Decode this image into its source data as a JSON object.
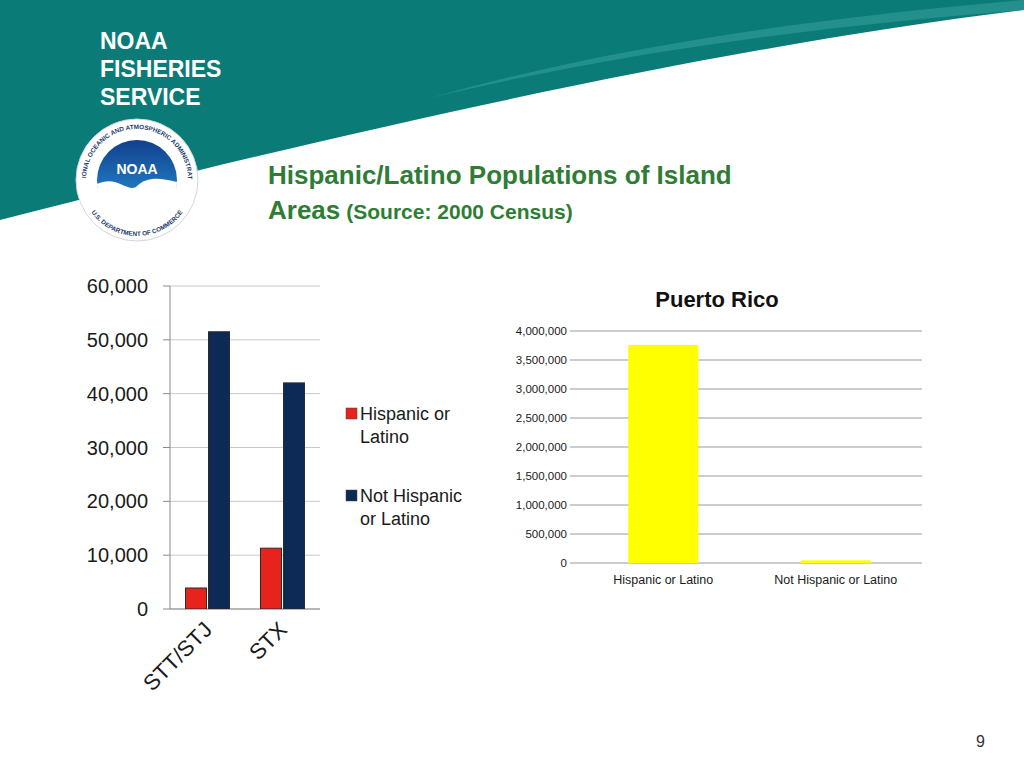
{
  "page": {
    "brand": [
      "NOAA",
      "FISHERIES",
      "SERVICE"
    ],
    "logo": {
      "center": "NOAA",
      "ring_top": "NATIONAL OCEANIC AND ATMOSPHERIC ADMINISTRATION",
      "ring_bottom": "U.S. DEPARTMENT OF COMMERCE"
    },
    "title_lines": [
      "Hispanic/Latino Populations of Island",
      "Areas"
    ],
    "source": "(Source:  2000 Census)",
    "page_number": 9
  },
  "chart_data": [
    {
      "type": "bar",
      "categories": [
        "STT/STJ",
        "STX"
      ],
      "series": [
        {
          "name": "Hispanic or Latino",
          "color": "#e8221c",
          "values": [
            3900,
            11300
          ]
        },
        {
          "name": "Not Hispanic or Latino",
          "color": "#0c2a55",
          "values": [
            51500,
            42000
          ]
        }
      ],
      "ylim": [
        0,
        60000
      ],
      "yticks": [
        0,
        {
          "value": 10000,
          "label": "10,000"
        },
        {
          "value": 20000,
          "label": "20,000"
        },
        {
          "value": 30000,
          "label": "30,000"
        },
        {
          "value": 40000,
          "label": "40,000"
        },
        {
          "value": 50000,
          "label": "50,000"
        },
        {
          "value": 60000,
          "label": "60,000"
        }
      ],
      "grid": true,
      "legend": "right"
    },
    {
      "type": "bar",
      "title": "Puerto Rico",
      "categories": [
        "Hispanic or Latino",
        "Not Hispanic or Latino"
      ],
      "values": [
        3760000,
        46000
      ],
      "color": "#ffff00",
      "ylim": [
        0,
        4000000
      ],
      "yticks": [
        0,
        {
          "value": 500000,
          "label": "500,000"
        },
        {
          "value": 1000000,
          "label": "1,000,000"
        },
        {
          "value": 1500000,
          "label": "1,500,000"
        },
        {
          "value": 2000000,
          "label": "2,000,000"
        },
        {
          "value": 2500000,
          "label": "2,500,000"
        },
        {
          "value": 3000000,
          "label": "3,000,000"
        },
        {
          "value": 3500000,
          "label": "3,500,000"
        },
        {
          "value": 4000000,
          "label": "4,000,000"
        }
      ],
      "grid": true
    }
  ]
}
